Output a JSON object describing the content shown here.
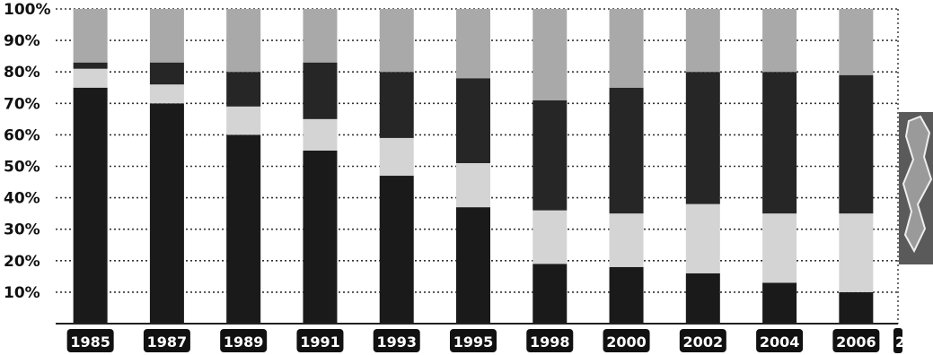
{
  "chart_data": {
    "type": "bar",
    "stacked": true,
    "title": "",
    "xlabel": "",
    "ylabel": "",
    "ylim": [
      0,
      100
    ],
    "y_tick_labels": [
      "10%",
      "20%",
      "30%",
      "40%",
      "50%",
      "60%",
      "70%",
      "80%",
      "90%",
      "100%"
    ],
    "grid": "dotted horizontal",
    "categories": [
      "1985",
      "1987",
      "1989",
      "1991",
      "1993",
      "1995",
      "1998",
      "2000",
      "2002",
      "2004",
      "2006"
    ],
    "series": [
      {
        "color": "#1a1a1a",
        "values": [
          75,
          70,
          60,
          55,
          47,
          37,
          19,
          18,
          16,
          13,
          10
        ]
      },
      {
        "color": "#d4d4d4",
        "values": [
          6,
          6,
          9,
          10,
          12,
          14,
          17,
          17,
          22,
          22,
          25
        ]
      },
      {
        "color": "#262626",
        "values": [
          2,
          7,
          11,
          18,
          21,
          27,
          35,
          40,
          42,
          45,
          44
        ]
      },
      {
        "color": "#a9a9a9",
        "values": [
          17,
          17,
          20,
          17,
          20,
          22,
          29,
          25,
          20,
          20,
          21
        ]
      }
    ],
    "partial_label": "2"
  }
}
